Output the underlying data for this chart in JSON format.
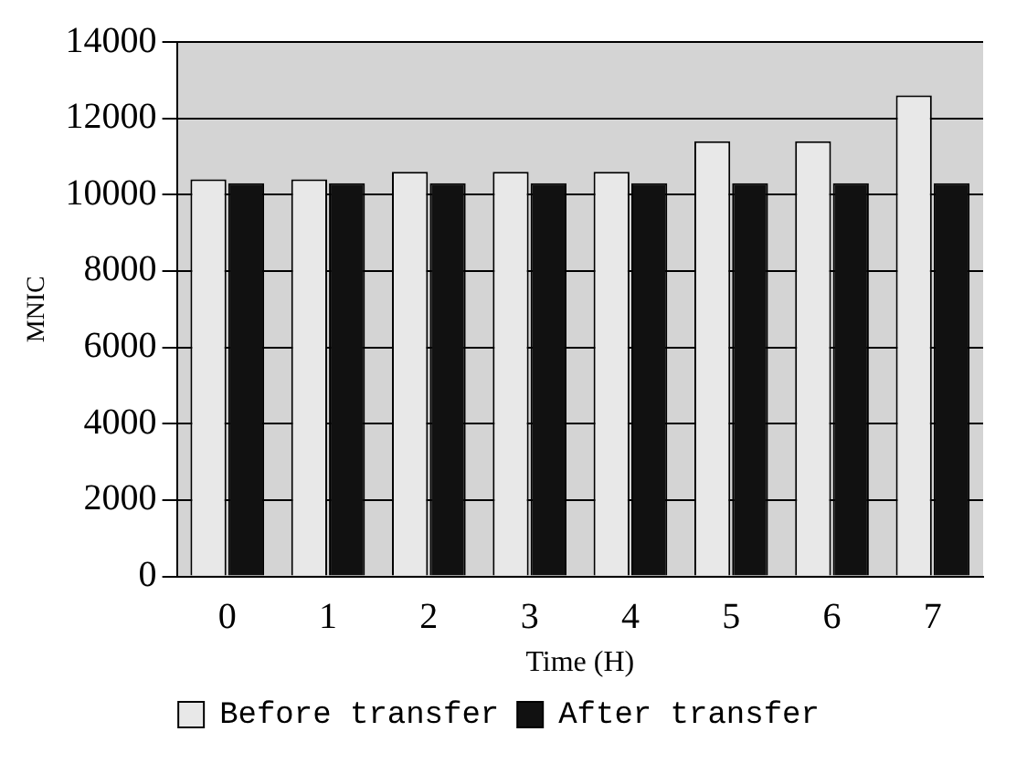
{
  "chart_data": {
    "type": "bar",
    "xlabel": "Time (H)",
    "ylabel": "MNIC",
    "categories": [
      "0",
      "1",
      "2",
      "3",
      "4",
      "5",
      "6",
      "7"
    ],
    "series": [
      {
        "name": "Before transfer",
        "color": "#e8e8e8",
        "values": [
          10400,
          10400,
          10600,
          10600,
          10600,
          11400,
          11400,
          12600
        ]
      },
      {
        "name": "After transfer",
        "color": "#111111",
        "values": [
          10300,
          10300,
          10300,
          10300,
          10300,
          10300,
          10300,
          10300
        ]
      }
    ],
    "ylim": [
      0,
      14000
    ],
    "yticks": [
      0,
      2000,
      4000,
      6000,
      8000,
      10000,
      12000,
      14000
    ],
    "grid": "y",
    "legend": "bottom"
  }
}
